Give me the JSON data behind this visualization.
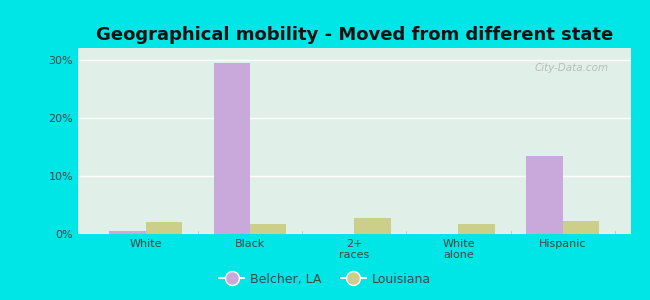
{
  "title": "Geographical mobility - Moved from different state",
  "categories": [
    "White",
    "Black",
    "2+\nraces",
    "White\nalone",
    "Hispanic"
  ],
  "belcher_values": [
    0.5,
    29.5,
    0.0,
    0.0,
    13.5
  ],
  "louisiana_values": [
    2.0,
    1.8,
    2.8,
    1.8,
    2.2
  ],
  "belcher_color": "#c9a8dc",
  "louisiana_color": "#cccf8a",
  "bar_width": 0.35,
  "ylim": [
    0,
    32
  ],
  "yticks": [
    0,
    10,
    20,
    30
  ],
  "ytick_labels": [
    "0%",
    "10%",
    "20%",
    "30%"
  ],
  "background_color_top": "#cde8e8",
  "background_color_bottom": "#e8f5e0",
  "outer_background": "#00e5e5",
  "title_fontsize": 13,
  "legend_labels": [
    "Belcher, LA",
    "Louisiana"
  ],
  "watermark": "City-Data.com",
  "tick_color": "#777777",
  "label_color": "#444444"
}
